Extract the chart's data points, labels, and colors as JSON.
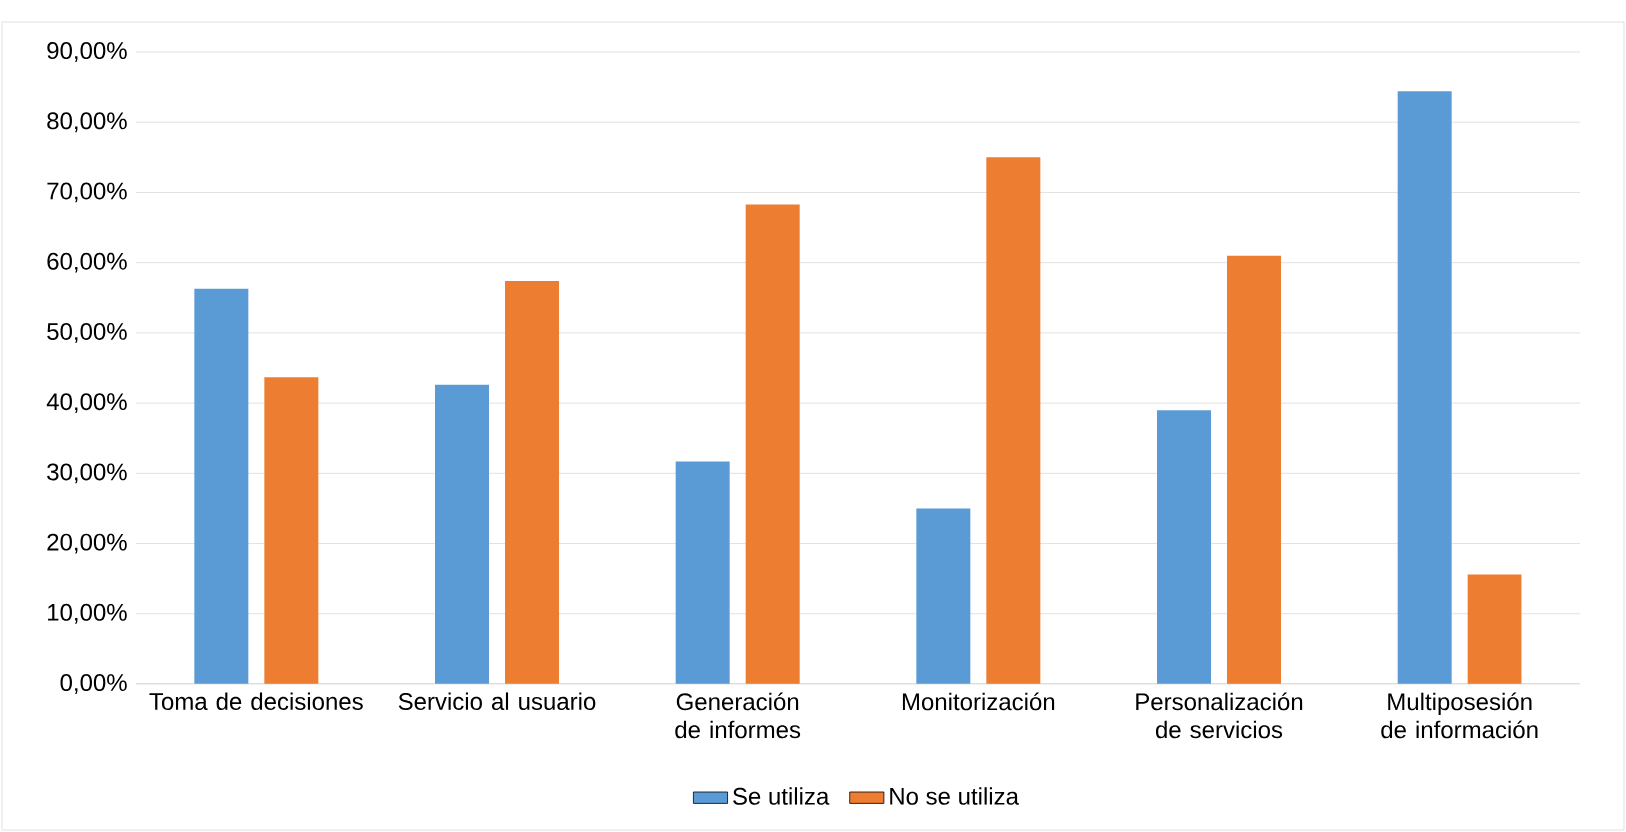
{
  "chart_data": {
    "type": "bar",
    "categories": [
      "Toma de decisiones",
      "Servicio al usuario",
      "Generación de informes",
      "Monitorización",
      "Personalización de servicios",
      "Multiposesión de información"
    ],
    "series": [
      {
        "name": "Se utiliza",
        "color": "#5b9bd5",
        "values": [
          56.3,
          42.6,
          31.7,
          25.0,
          39.0,
          84.4
        ]
      },
      {
        "name": "No se utiliza",
        "color": "#ed7d31",
        "values": [
          43.7,
          57.4,
          68.3,
          75.0,
          61.0,
          15.6
        ]
      }
    ],
    "ylim": [
      0,
      90
    ],
    "yticks": [
      {
        "value": 0,
        "label": "0,00%"
      },
      {
        "value": 10,
        "label": "10,00%"
      },
      {
        "value": 20,
        "label": "20,00%"
      },
      {
        "value": 30,
        "label": "30,00%"
      },
      {
        "value": 40,
        "label": "40,00%"
      },
      {
        "value": 50,
        "label": "50,00%"
      },
      {
        "value": 60,
        "label": "60,00%"
      },
      {
        "value": 70,
        "label": "70,00%"
      },
      {
        "value": 80,
        "label": "80,00%"
      },
      {
        "value": 90,
        "label": "90,00%"
      }
    ],
    "grid": "y",
    "legend": "bottom"
  }
}
